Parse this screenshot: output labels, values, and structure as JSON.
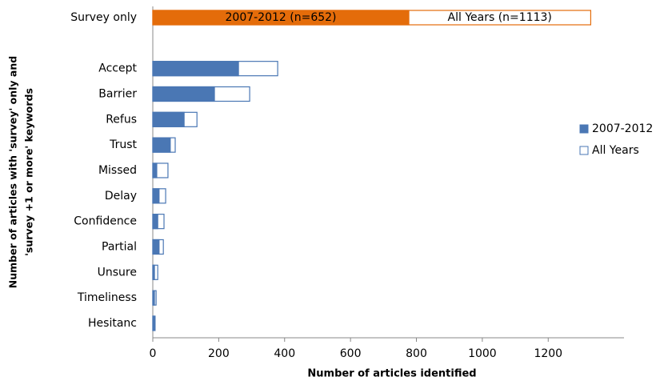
{
  "chart_data": {
    "type": "bar",
    "orientation": "horizontal",
    "overlap": true,
    "categories": [
      "Survey only",
      null,
      "Accept",
      "Barrier",
      "Refus",
      "Trust",
      "Missed",
      "Delay",
      "Confidence",
      "Partial",
      "Unsure",
      "Timeliness",
      "Hesitanc"
    ],
    "series": [
      {
        "name": "All Years",
        "color": "#ffffff",
        "edge_colors": [
          "#e46c0a",
          null,
          "#4a77b4",
          "#4a77b4",
          "#4a77b4",
          "#4a77b4",
          "#4a77b4",
          "#4a77b4",
          "#4a77b4",
          "#4a77b4",
          "#4a77b4",
          "#4a77b4",
          "#4a77b4"
        ],
        "values": [
          1329,
          null,
          379,
          294,
          134,
          68,
          46,
          39,
          34,
          32,
          15,
          10,
          7
        ]
      },
      {
        "name": "2007-2012",
        "color": "#4a77b4",
        "colors": [
          "#e46c0a",
          null,
          "#4a77b4",
          "#4a77b4",
          "#4a77b4",
          "#4a77b4",
          "#4a77b4",
          "#4a77b4",
          "#4a77b4",
          "#4a77b4",
          "#4a77b4",
          "#4a77b4",
          "#4a77b4"
        ],
        "values": [
          777,
          null,
          260,
          187,
          95,
          53,
          12,
          19,
          15,
          19,
          5,
          5,
          5
        ]
      }
    ],
    "annotations": [
      "2007-2012 (n=652)",
      "All Years (n=1113)"
    ],
    "xlim": [
      0,
      1430
    ],
    "xticks": [
      0,
      200,
      400,
      600,
      800,
      1000,
      1200
    ],
    "xlabel": "Number of articles identified",
    "ylabel_lines": [
      "Number of articles with 'survey' only and",
      "'survey +1 or more' keywords"
    ],
    "legend_order": [
      "2007-2012",
      "All Years"
    ],
    "legend": "right",
    "grid": false
  }
}
